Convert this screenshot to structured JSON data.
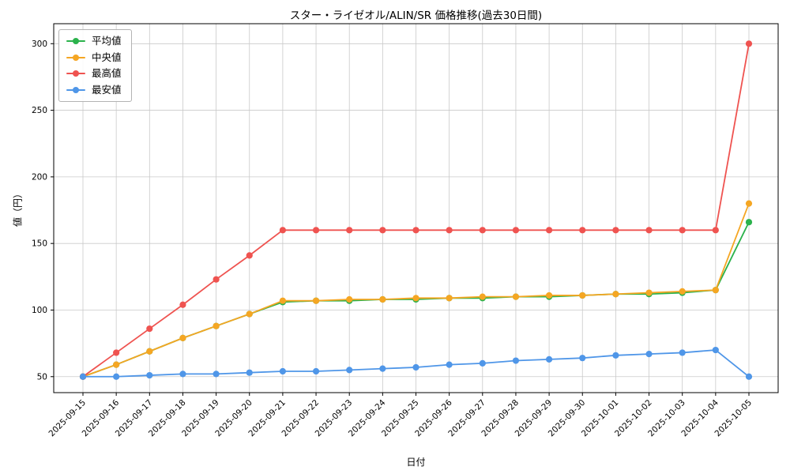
{
  "chart_data": {
    "type": "line",
    "title": "スター・ライゼオル/ALIN/SR 価格推移(過去30日間)",
    "xlabel": "日付",
    "ylabel": "値（円）",
    "grid": true,
    "legend_position": "upper-left",
    "yticks": [
      50,
      100,
      150,
      200,
      250,
      300
    ],
    "ylim": [
      38,
      315
    ],
    "categories": [
      "2025-09-15",
      "2025-09-16",
      "2025-09-17",
      "2025-09-18",
      "2025-09-19",
      "2025-09-20",
      "2025-09-21",
      "2025-09-22",
      "2025-09-23",
      "2025-09-24",
      "2025-09-25",
      "2025-09-26",
      "2025-09-27",
      "2025-09-28",
      "2025-09-29",
      "2025-09-30",
      "2025-10-01",
      "2025-10-02",
      "2025-10-03",
      "2025-10-04",
      "2025-10-05"
    ],
    "series": [
      {
        "id": "average",
        "name": "平均値",
        "color": "#2bb24c",
        "values": [
          50,
          59,
          69,
          79,
          88,
          97,
          106,
          107,
          107,
          108,
          108,
          109,
          109,
          110,
          110,
          111,
          112,
          112,
          113,
          115,
          166
        ]
      },
      {
        "id": "median",
        "name": "中央値",
        "color": "#f5a623",
        "values": [
          50,
          59,
          69,
          79,
          88,
          97,
          107,
          107,
          108,
          108,
          109,
          109,
          110,
          110,
          111,
          111,
          112,
          113,
          114,
          115,
          180
        ]
      },
      {
        "id": "highest",
        "name": "最高値",
        "color": "#ef5350",
        "values": [
          50,
          68,
          86,
          104,
          123,
          141,
          160,
          160,
          160,
          160,
          160,
          160,
          160,
          160,
          160,
          160,
          160,
          160,
          160,
          160,
          300
        ]
      },
      {
        "id": "lowest",
        "name": "最安値",
        "color": "#4f96e8",
        "values": [
          50,
          50,
          51,
          52,
          52,
          53,
          54,
          54,
          55,
          56,
          57,
          59,
          60,
          62,
          63,
          64,
          66,
          67,
          68,
          70,
          50
        ]
      }
    ]
  },
  "style": {
    "grid_color": "#c9c9c9",
    "frame_color": "#000000",
    "tick_label_color": "#000000"
  }
}
